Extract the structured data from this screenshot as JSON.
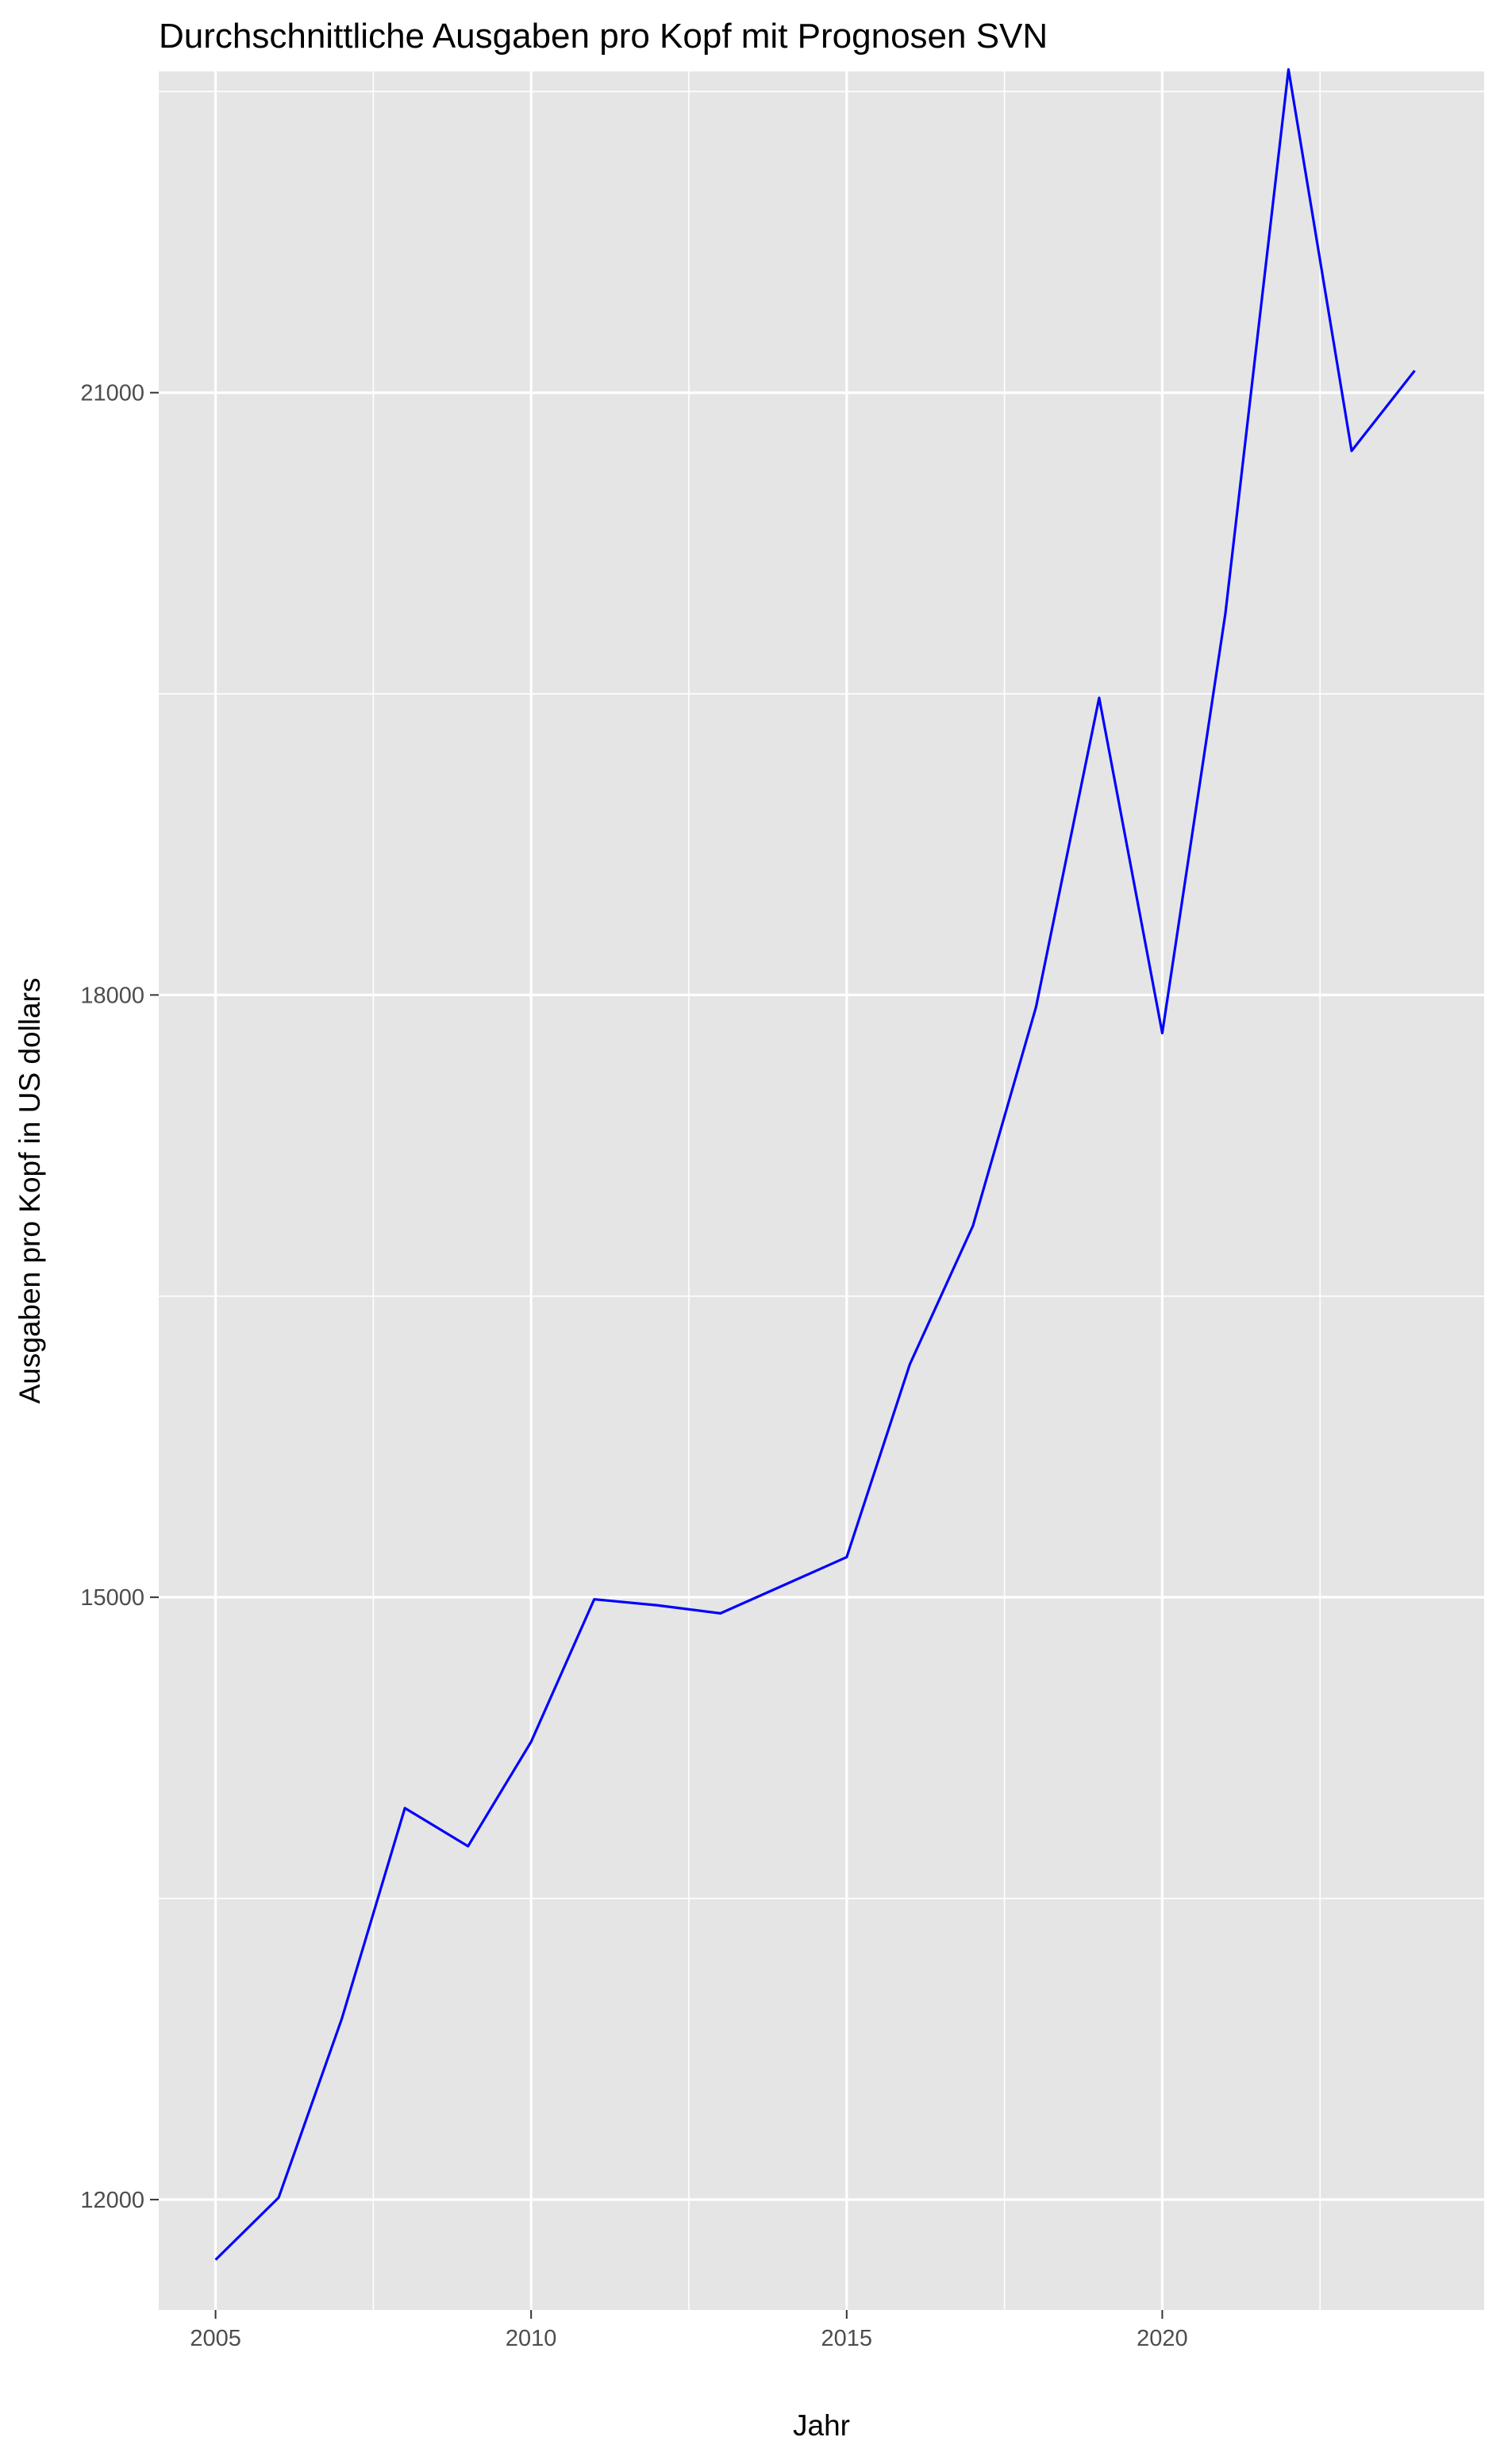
{
  "chart_data": {
    "type": "line",
    "title": "Durchschnittliche Ausgaben pro Kopf mit Prognosen SVN",
    "xlabel": "Jahr",
    "ylabel": "Ausgaben pro Kopf in US dollars",
    "xlim": [
      2004.1,
      2025.1
    ],
    "ylim": [
      11450,
      22600
    ],
    "x_ticks": [
      2005,
      2010,
      2015,
      2020
    ],
    "y_ticks": [
      12000,
      15000,
      18000,
      21000
    ],
    "x_minor": [
      2007.5,
      2012.5,
      2017.5,
      2022.5
    ],
    "y_minor": [
      13500,
      16500,
      19500,
      22500
    ],
    "grid": true,
    "panel_background": "#e5e5e5",
    "series": [
      {
        "color": "#0000ff",
        "x": [
          2005,
          2006,
          2007,
          2008,
          2009,
          2010,
          2011,
          2012,
          2013,
          2014,
          2015,
          2016,
          2017,
          2018,
          2019,
          2020,
          2021,
          2022,
          2023,
          2024
        ],
        "y": [
          11700,
          12010,
          12900,
          13950,
          13760,
          14280,
          14990,
          14960,
          14920,
          15060,
          15200,
          16160,
          16850,
          17940,
          19480,
          17810,
          19900,
          22610,
          20710,
          21110
        ]
      }
    ]
  }
}
